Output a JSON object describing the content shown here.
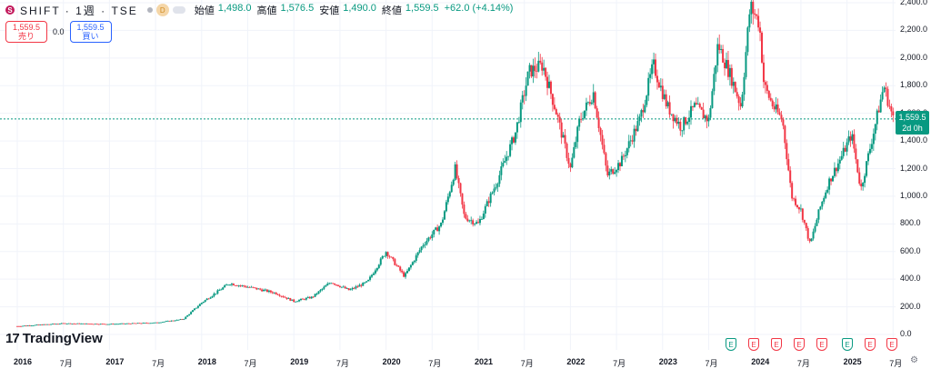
{
  "header": {
    "logo_letter": "S",
    "symbol": "SHIFT · 1週 · TSE",
    "badge": "D",
    "ohlc": [
      {
        "label": "始値",
        "value": "1,498.0"
      },
      {
        "label": "高値",
        "value": "1,576.5"
      },
      {
        "label": "安値",
        "value": "1,490.0"
      },
      {
        "label": "終値",
        "value": "1,559.5"
      }
    ],
    "change": "+62.0 (+4.14%)"
  },
  "trade": {
    "sell_price": "1,559.5",
    "sell_label": "売り",
    "spread": "0.0",
    "buy_price": "1,559.5",
    "buy_label": "買い"
  },
  "price_tag": {
    "price": "1,559.5",
    "countdown": "2d 0h"
  },
  "logo_text": "TradingView",
  "settings_icon": "gear-icon",
  "colors": {
    "up": "#089981",
    "down": "#f23645",
    "grid": "#f0f3fa",
    "last_price_line": "#089981"
  },
  "earnings": [
    {
      "label": "E",
      "color": "green"
    },
    {
      "label": "E",
      "color": "red"
    },
    {
      "label": "E",
      "color": "red"
    },
    {
      "label": "E",
      "color": "red"
    },
    {
      "label": "E",
      "color": "red"
    },
    {
      "label": "E",
      "color": "green"
    },
    {
      "label": "E",
      "color": "red"
    },
    {
      "label": "E",
      "color": "red"
    }
  ],
  "chart_data": {
    "type": "candlestick",
    "interval": "1週",
    "last_price": 1559.5,
    "ylim": [
      0,
      2400
    ],
    "y_ticks": [
      "0.0",
      "200.0",
      "400.0",
      "600.0",
      "800.0",
      "1,000.0",
      "1,200.0",
      "1,400.0",
      "1,600.0",
      "1,800.0",
      "2,000.0",
      "2,200.0",
      "2,400.0"
    ],
    "x_ticks": [
      "2016",
      "7月",
      "2017",
      "7月",
      "2018",
      "7月",
      "2019",
      "7月",
      "2020",
      "7月",
      "2021",
      "7月",
      "2022",
      "7月",
      "2023",
      "7月",
      "2024",
      "7月",
      "2025",
      "7月"
    ],
    "price_path": [
      [
        2016.0,
        60
      ],
      [
        2016.5,
        80
      ],
      [
        2017.0,
        75
      ],
      [
        2017.5,
        85
      ],
      [
        2017.8,
        110
      ],
      [
        2018.0,
        230
      ],
      [
        2018.3,
        370
      ],
      [
        2018.6,
        330
      ],
      [
        2018.8,
        300
      ],
      [
        2019.0,
        240
      ],
      [
        2019.2,
        270
      ],
      [
        2019.4,
        380
      ],
      [
        2019.6,
        320
      ],
      [
        2019.8,
        380
      ],
      [
        2020.0,
        600
      ],
      [
        2020.2,
        420
      ],
      [
        2020.4,
        650
      ],
      [
        2020.6,
        800
      ],
      [
        2020.75,
        1200
      ],
      [
        2020.85,
        850
      ],
      [
        2021.0,
        800
      ],
      [
        2021.2,
        1100
      ],
      [
        2021.4,
        1450
      ],
      [
        2021.55,
        1900
      ],
      [
        2021.7,
        1950
      ],
      [
        2021.85,
        1600
      ],
      [
        2022.0,
        1200
      ],
      [
        2022.1,
        1550
      ],
      [
        2022.25,
        1750
      ],
      [
        2022.4,
        1150
      ],
      [
        2022.55,
        1250
      ],
      [
        2022.75,
        1550
      ],
      [
        2022.9,
        1950
      ],
      [
        2023.05,
        1650
      ],
      [
        2023.2,
        1500
      ],
      [
        2023.35,
        1650
      ],
      [
        2023.5,
        1550
      ],
      [
        2023.6,
        2100
      ],
      [
        2023.75,
        1850
      ],
      [
        2023.85,
        1650
      ],
      [
        2023.95,
        2380
      ],
      [
        2024.05,
        2250
      ],
      [
        2024.1,
        1800
      ],
      [
        2024.2,
        1650
      ],
      [
        2024.3,
        1550
      ],
      [
        2024.4,
        1000
      ],
      [
        2024.5,
        900
      ],
      [
        2024.6,
        650
      ],
      [
        2024.7,
        900
      ],
      [
        2024.8,
        1100
      ],
      [
        2024.95,
        1300
      ],
      [
        2025.05,
        1450
      ],
      [
        2025.15,
        1050
      ],
      [
        2025.3,
        1500
      ],
      [
        2025.4,
        1800
      ],
      [
        2025.5,
        1559.5
      ]
    ]
  }
}
